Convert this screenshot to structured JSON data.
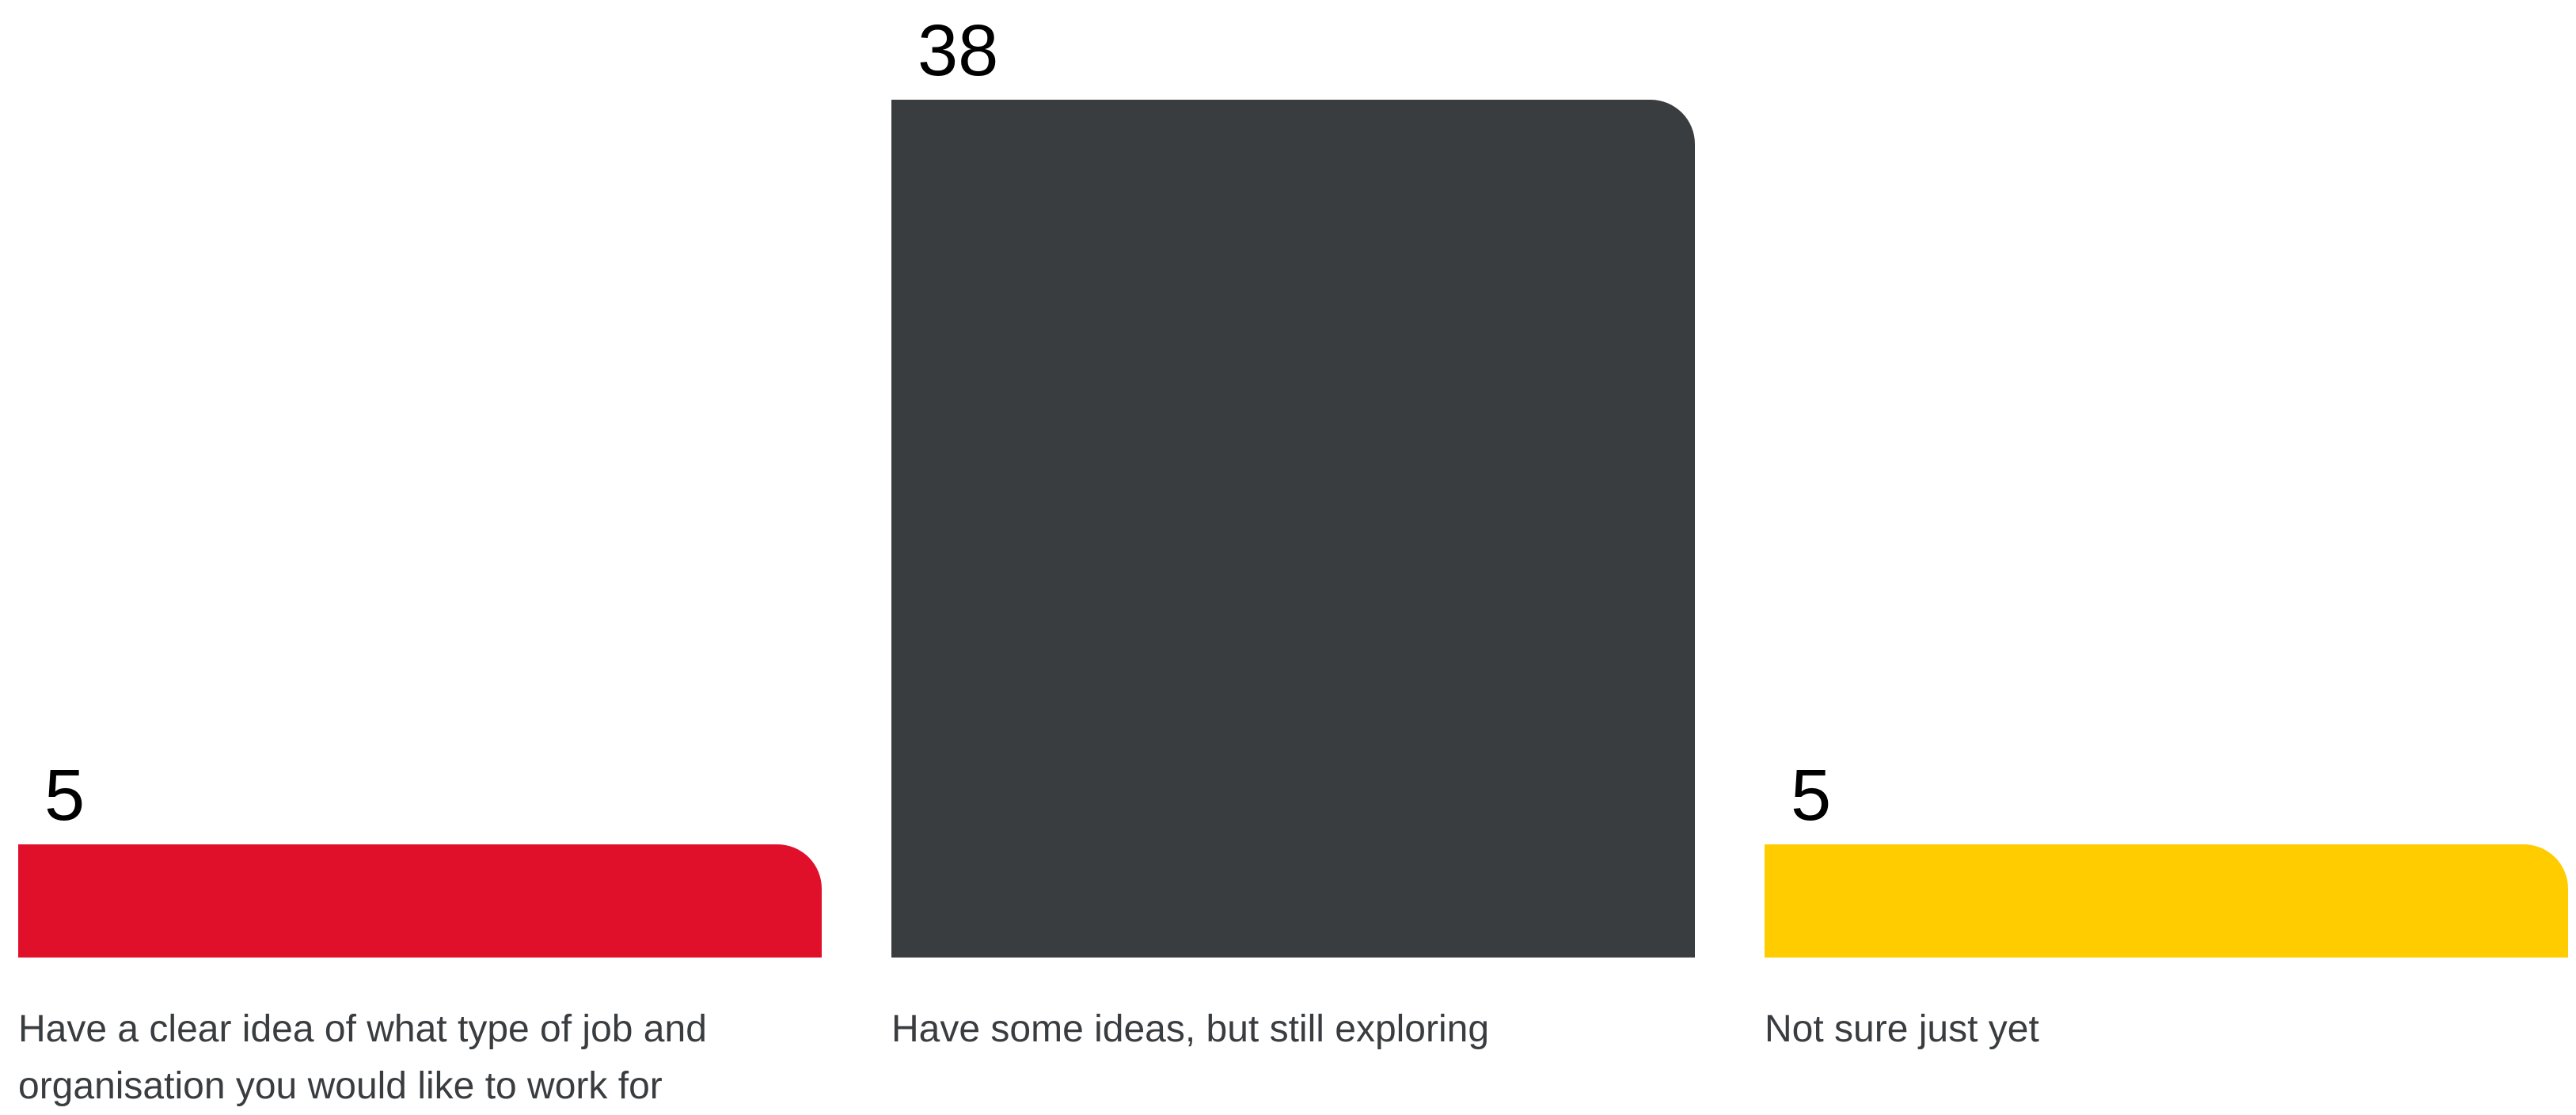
{
  "chart_data": {
    "type": "bar",
    "categories": [
      "Have a clear idea of what type of job and organisation you would like to work for",
      "Have some ideas, but still exploring",
      "Not sure just yet"
    ],
    "values": [
      5,
      38,
      5
    ],
    "colors": [
      "#e0102b",
      "#3a3d3f",
      "#ffcc00"
    ],
    "title": "",
    "xlabel": "",
    "ylabel": "",
    "ylim": [
      0,
      38
    ],
    "grid": false,
    "legend": "none"
  }
}
